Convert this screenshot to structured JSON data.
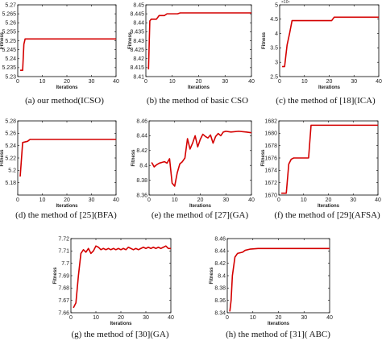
{
  "chart_data": [
    {
      "type": "line",
      "caption": "(a) our method(ICSO)",
      "xlabel": "Iterations",
      "ylabel": "Fitness",
      "xlim": [
        0,
        40
      ],
      "ylim": [
        5.23,
        5.27
      ],
      "xticks": [
        "0",
        "10",
        "20",
        "30",
        "40"
      ],
      "yticks": [
        "5.23",
        "5.235",
        "5.24",
        "5.245",
        "5.25",
        "5.255",
        "5.26",
        "5.265",
        "5.27"
      ],
      "ytick_values": [
        5.23,
        5.235,
        5.24,
        5.245,
        5.25,
        5.255,
        5.26,
        5.265,
        5.27
      ],
      "series": [
        {
          "color": "#d40000",
          "x": [
            1,
            2,
            2.5,
            3,
            40
          ],
          "y": [
            5.2335,
            5.2335,
            5.248,
            5.251,
            5.251
          ]
        }
      ]
    },
    {
      "type": "line",
      "caption": "(b) the method of basic CSO",
      "xlabel": "Iterations",
      "ylabel": "Fitness",
      "xlim": [
        0,
        40
      ],
      "ylim": [
        8.41,
        8.45
      ],
      "xticks": [
        "0",
        "10",
        "20",
        "30",
        "40"
      ],
      "yticks": [
        "8.41",
        "8.415",
        "8.42",
        "8.425",
        "8.43",
        "8.435",
        "8.44",
        "8.445",
        "8.45"
      ],
      "ytick_values": [
        8.41,
        8.415,
        8.42,
        8.425,
        8.43,
        8.435,
        8.44,
        8.445,
        8.45
      ],
      "series": [
        {
          "color": "#d40000",
          "x": [
            1,
            1.5,
            2,
            4,
            5,
            7,
            8,
            12,
            13,
            40
          ],
          "y": [
            8.414,
            8.441,
            8.442,
            8.442,
            8.444,
            8.444,
            8.445,
            8.445,
            8.4455,
            8.4455
          ]
        }
      ]
    },
    {
      "type": "line",
      "caption": "(c) the method of [18](ICA)",
      "xlabel": "Iterations",
      "ylabel": "Fitness",
      "xlim": [
        0,
        40
      ],
      "ylim": [
        2.5,
        5.0
      ],
      "exponent": "×10⁴",
      "xticks": [
        "0",
        "10",
        "20",
        "30",
        "40"
      ],
      "yticks": [
        "2.5",
        "3",
        "3.5",
        "4",
        "4.5",
        "5"
      ],
      "ytick_values": [
        2.5,
        3.0,
        3.5,
        4.0,
        4.5,
        5.0
      ],
      "series": [
        {
          "color": "#d40000",
          "x": [
            1,
            2,
            3,
            4,
            5,
            21,
            22,
            40
          ],
          "y": [
            2.85,
            2.85,
            3.6,
            4.0,
            4.45,
            4.45,
            4.57,
            4.57
          ]
        }
      ]
    },
    {
      "type": "line",
      "caption": "(d) the method of [25](BFA)",
      "xlabel": "Iterations",
      "ylabel": "Fitness",
      "xlim": [
        0,
        40
      ],
      "ylim": [
        5.16,
        5.28
      ],
      "xticks": [
        "0",
        "10",
        "20",
        "30",
        "40"
      ],
      "yticks": [
        "5.18",
        "5.2",
        "5.22",
        "5.24",
        "5.26",
        "5.28"
      ],
      "ytick_values": [
        5.18,
        5.2,
        5.22,
        5.24,
        5.26,
        5.28
      ],
      "series": [
        {
          "color": "#d40000",
          "x": [
            1,
            2,
            4,
            5,
            40
          ],
          "y": [
            5.19,
            5.245,
            5.247,
            5.25,
            5.25
          ]
        }
      ]
    },
    {
      "type": "line",
      "caption": "(e) the method of [27](GA)",
      "xlabel": "Iterations",
      "ylabel": "Fitness",
      "xlim": [
        0,
        40
      ],
      "ylim": [
        8.36,
        8.46
      ],
      "xticks": [
        "0",
        "10",
        "20",
        "30",
        "40"
      ],
      "yticks": [
        "8.36",
        "8.38",
        "8.4",
        "8.42",
        "8.44",
        "8.46"
      ],
      "ytick_values": [
        8.36,
        8.38,
        8.4,
        8.42,
        8.44,
        8.46
      ],
      "series": [
        {
          "color": "#d40000",
          "x": [
            1,
            2,
            3,
            4,
            5,
            6,
            7,
            8,
            9,
            10,
            11,
            12,
            13,
            14,
            15,
            16,
            17,
            18,
            19,
            20,
            21,
            22,
            23,
            24,
            25,
            26,
            27,
            28,
            29,
            30,
            32,
            35,
            38,
            40
          ],
          "y": [
            8.404,
            8.398,
            8.401,
            8.403,
            8.404,
            8.405,
            8.403,
            8.409,
            8.376,
            8.372,
            8.39,
            8.402,
            8.405,
            8.41,
            8.436,
            8.422,
            8.43,
            8.44,
            8.425,
            8.435,
            8.442,
            8.439,
            8.437,
            8.441,
            8.43,
            8.439,
            8.443,
            8.44,
            8.445,
            8.446,
            8.445,
            8.446,
            8.445,
            8.444
          ]
        }
      ]
    },
    {
      "type": "line",
      "caption": "(f) the method of [29](AFSA)",
      "xlabel": "Iterations",
      "ylabel": "Fitness",
      "xlim": [
        0,
        40
      ],
      "ylim": [
        1670,
        1682
      ],
      "xticks": [
        "0",
        "10",
        "20",
        "30",
        "40"
      ],
      "yticks": [
        "1670",
        "1672",
        "1674",
        "1676",
        "1678",
        "1680",
        "1682"
      ],
      "ytick_values": [
        1670,
        1672,
        1674,
        1676,
        1678,
        1680,
        1682
      ],
      "series": [
        {
          "color": "#d40000",
          "x": [
            1,
            2,
            3,
            4,
            5,
            6,
            7,
            12,
            13,
            40
          ],
          "y": [
            1670.3,
            1670.3,
            1670.3,
            1675.0,
            1675.8,
            1676.0,
            1676.0,
            1676.0,
            1681.3,
            1681.3
          ]
        }
      ]
    },
    {
      "type": "line",
      "caption": "(g) the method of [30](GA)",
      "xlabel": "Iterations",
      "ylabel": "Fitness",
      "xlim": [
        0,
        40
      ],
      "ylim": [
        7.66,
        7.72
      ],
      "xticks": [
        "0",
        "10",
        "20",
        "30",
        "40"
      ],
      "yticks": [
        "7.66",
        "7.67",
        "7.68",
        "7.69",
        "7.7",
        "7.71",
        "7.72"
      ],
      "ytick_values": [
        7.66,
        7.67,
        7.68,
        7.69,
        7.7,
        7.71,
        7.72
      ],
      "series": [
        {
          "color": "#d40000",
          "x": [
            1,
            2,
            3,
            4,
            5,
            6,
            7,
            8,
            9,
            10,
            11,
            12,
            13,
            14,
            15,
            16,
            17,
            18,
            19,
            20,
            21,
            22,
            23,
            24,
            25,
            26,
            27,
            28,
            29,
            30,
            31,
            32,
            33,
            34,
            35,
            36,
            37,
            38,
            39,
            40
          ],
          "y": [
            7.664,
            7.668,
            7.69,
            7.708,
            7.711,
            7.709,
            7.712,
            7.708,
            7.71,
            7.714,
            7.713,
            7.711,
            7.712,
            7.711,
            7.712,
            7.711,
            7.712,
            7.711,
            7.712,
            7.711,
            7.712,
            7.711,
            7.713,
            7.712,
            7.711,
            7.712,
            7.711,
            7.712,
            7.713,
            7.712,
            7.713,
            7.712,
            7.713,
            7.712,
            7.713,
            7.712,
            7.713,
            7.714,
            7.712,
            7.712
          ]
        }
      ]
    },
    {
      "type": "line",
      "caption": "(h) the method of [31]( ABC)",
      "xlabel": "Iterations",
      "ylabel": "Fitness",
      "xlim": [
        0,
        40
      ],
      "ylim": [
        8.34,
        8.46
      ],
      "xticks": [
        "0",
        "10",
        "20",
        "30",
        "40"
      ],
      "yticks": [
        "8.34",
        "8.36",
        "8.38",
        "8.4",
        "8.42",
        "8.44",
        "8.46"
      ],
      "ytick_values": [
        8.34,
        8.36,
        8.38,
        8.4,
        8.42,
        8.44,
        8.46
      ],
      "series": [
        {
          "color": "#d40000",
          "x": [
            1,
            1.5,
            2,
            3,
            4,
            6,
            7,
            9,
            12,
            40
          ],
          "y": [
            8.342,
            8.36,
            8.4,
            8.43,
            8.436,
            8.438,
            8.441,
            8.443,
            8.444,
            8.444
          ]
        }
      ]
    }
  ]
}
